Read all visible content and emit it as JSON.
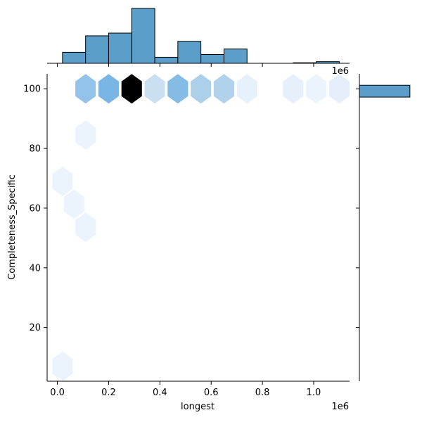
{
  "chart_data": {
    "type": "hexbin",
    "kind": "jointplot",
    "xlabel": "longest",
    "ylabel": "Completeness_Specific",
    "x_offset_label": "1e6",
    "marg_x_offset_label": "1e6",
    "xlim": [
      -0.04,
      1.14
    ],
    "ylim": [
      2,
      105
    ],
    "x_ticks": [
      0.0,
      0.2,
      0.4,
      0.6,
      0.8,
      1.0
    ],
    "x_tick_labels": [
      "0.0",
      "0.2",
      "0.4",
      "0.6",
      "0.8",
      "1.0"
    ],
    "y_ticks": [
      20,
      40,
      60,
      80,
      100
    ],
    "y_tick_labels": [
      "20",
      "40",
      "60",
      "80",
      "100"
    ],
    "color_base": "#1f77b4",
    "hexbins": [
      {
        "x": 0.11,
        "y": 100,
        "count": 0.4
      },
      {
        "x": 0.2,
        "y": 100,
        "count": 0.5
      },
      {
        "x": 0.29,
        "y": 100,
        "count": 1.0
      },
      {
        "x": 0.38,
        "y": 100,
        "count": 0.2
      },
      {
        "x": 0.47,
        "y": 100,
        "count": 0.45
      },
      {
        "x": 0.56,
        "y": 100,
        "count": 0.32
      },
      {
        "x": 0.65,
        "y": 100,
        "count": 0.3
      },
      {
        "x": 0.74,
        "y": 100,
        "count": 0.05
      },
      {
        "x": 0.92,
        "y": 100,
        "count": 0.06
      },
      {
        "x": 1.01,
        "y": 100,
        "count": 0.03
      },
      {
        "x": 1.1,
        "y": 100,
        "count": 0.07
      },
      {
        "x": 0.11,
        "y": 84.5,
        "count": 0.03
      },
      {
        "x": 0.02,
        "y": 69,
        "count": 0.03
      },
      {
        "x": 0.065,
        "y": 61.3,
        "count": 0.03
      },
      {
        "x": 0.11,
        "y": 53.6,
        "count": 0.03
      },
      {
        "x": 0.02,
        "y": 7,
        "count": 0.03
      }
    ],
    "marginal_x": {
      "type": "histogram",
      "bin_edges": [
        0.02,
        0.11,
        0.2,
        0.29,
        0.38,
        0.47,
        0.56,
        0.65,
        0.74,
        0.83,
        0.92,
        1.01,
        1.1
      ],
      "counts": [
        2,
        5,
        5.5,
        10,
        1.1,
        4,
        1.6,
        2.6,
        0,
        0,
        0.1,
        0.3,
        0.8
      ],
      "max": 10.5
    },
    "marginal_y": {
      "type": "histogram",
      "bins": [
        {
          "y0": 96.5,
          "y1": 100,
          "count": 1
        }
      ],
      "max": 1.1
    }
  }
}
